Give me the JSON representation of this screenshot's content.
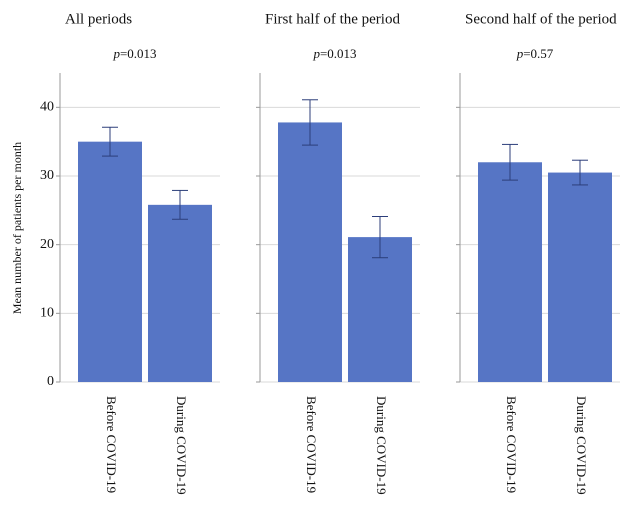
{
  "chart_data": [
    {
      "type": "bar",
      "title": "All periods",
      "subtitle": "p=0.013",
      "y_label": "Mean number of  patients per month",
      "categories": [
        "Before COVID-19",
        "During COVID-19"
      ],
      "values": [
        35,
        25.8
      ],
      "errors": [
        2.1,
        2.1
      ],
      "color": "#5675c5",
      "ylim": [
        0,
        45
      ],
      "yticks": [
        0,
        10,
        20,
        30,
        40
      ],
      "grid": true,
      "show_tick_labels": true
    },
    {
      "type": "bar",
      "title": "First half of the period",
      "subtitle": "p=0.013",
      "categories": [
        "Before COVID-19",
        "During COVID-19"
      ],
      "values": [
        37.8,
        21.1
      ],
      "errors": [
        3.3,
        3.0
      ],
      "color": "#5675c5",
      "ylim": [
        0,
        45
      ],
      "yticks": [
        0,
        10,
        20,
        30,
        40
      ],
      "grid": true,
      "show_tick_labels": false
    },
    {
      "type": "bar",
      "title": "Second half of the period",
      "subtitle": "p=0.57",
      "categories": [
        "Before COVID-19",
        "During COVID-19"
      ],
      "values": [
        32,
        30.5
      ],
      "errors": [
        2.6,
        1.8
      ],
      "color": "#5675c5",
      "ylim": [
        0,
        45
      ],
      "yticks": [
        0,
        10,
        20,
        30,
        40
      ],
      "grid": true,
      "show_tick_labels": false
    }
  ]
}
